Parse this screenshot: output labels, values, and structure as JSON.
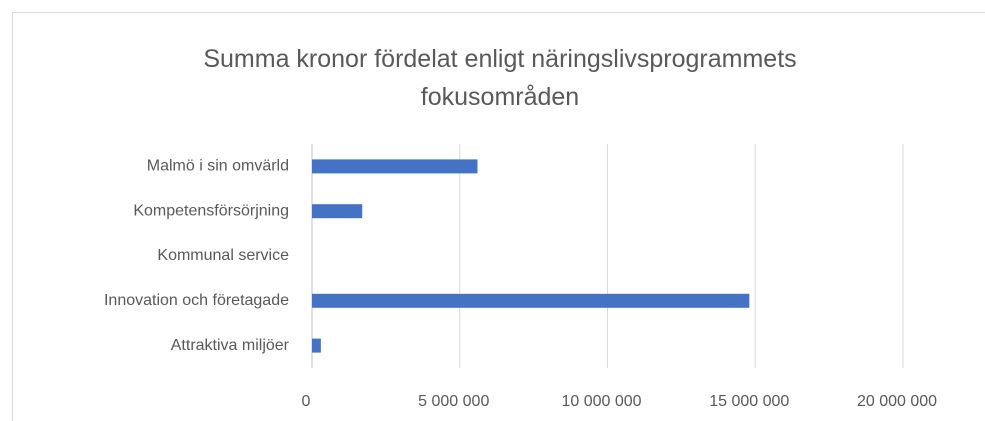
{
  "chart_data": {
    "type": "barh",
    "title": "Summa kronor fördelat enligt näringslivsprogrammets fokusområden",
    "categories": [
      "Malmö i sin omvärld",
      "Kompetensförsörjning",
      "Kommunal service",
      "Innovation och företagade",
      "Attraktiva miljöer"
    ],
    "values": [
      5600000,
      1700000,
      0,
      14800000,
      300000
    ],
    "color": "#4472c4",
    "xlim": [
      0,
      20000000
    ],
    "xticks": [
      0,
      {
        "value": 5000000,
        "label": "5 000 000"
      },
      {
        "value": 10000000,
        "label": "10 000 000"
      },
      {
        "value": 15000000,
        "label": "15 000 000"
      },
      {
        "value": 20000000,
        "label": "20 000 000"
      }
    ],
    "grid": true
  }
}
